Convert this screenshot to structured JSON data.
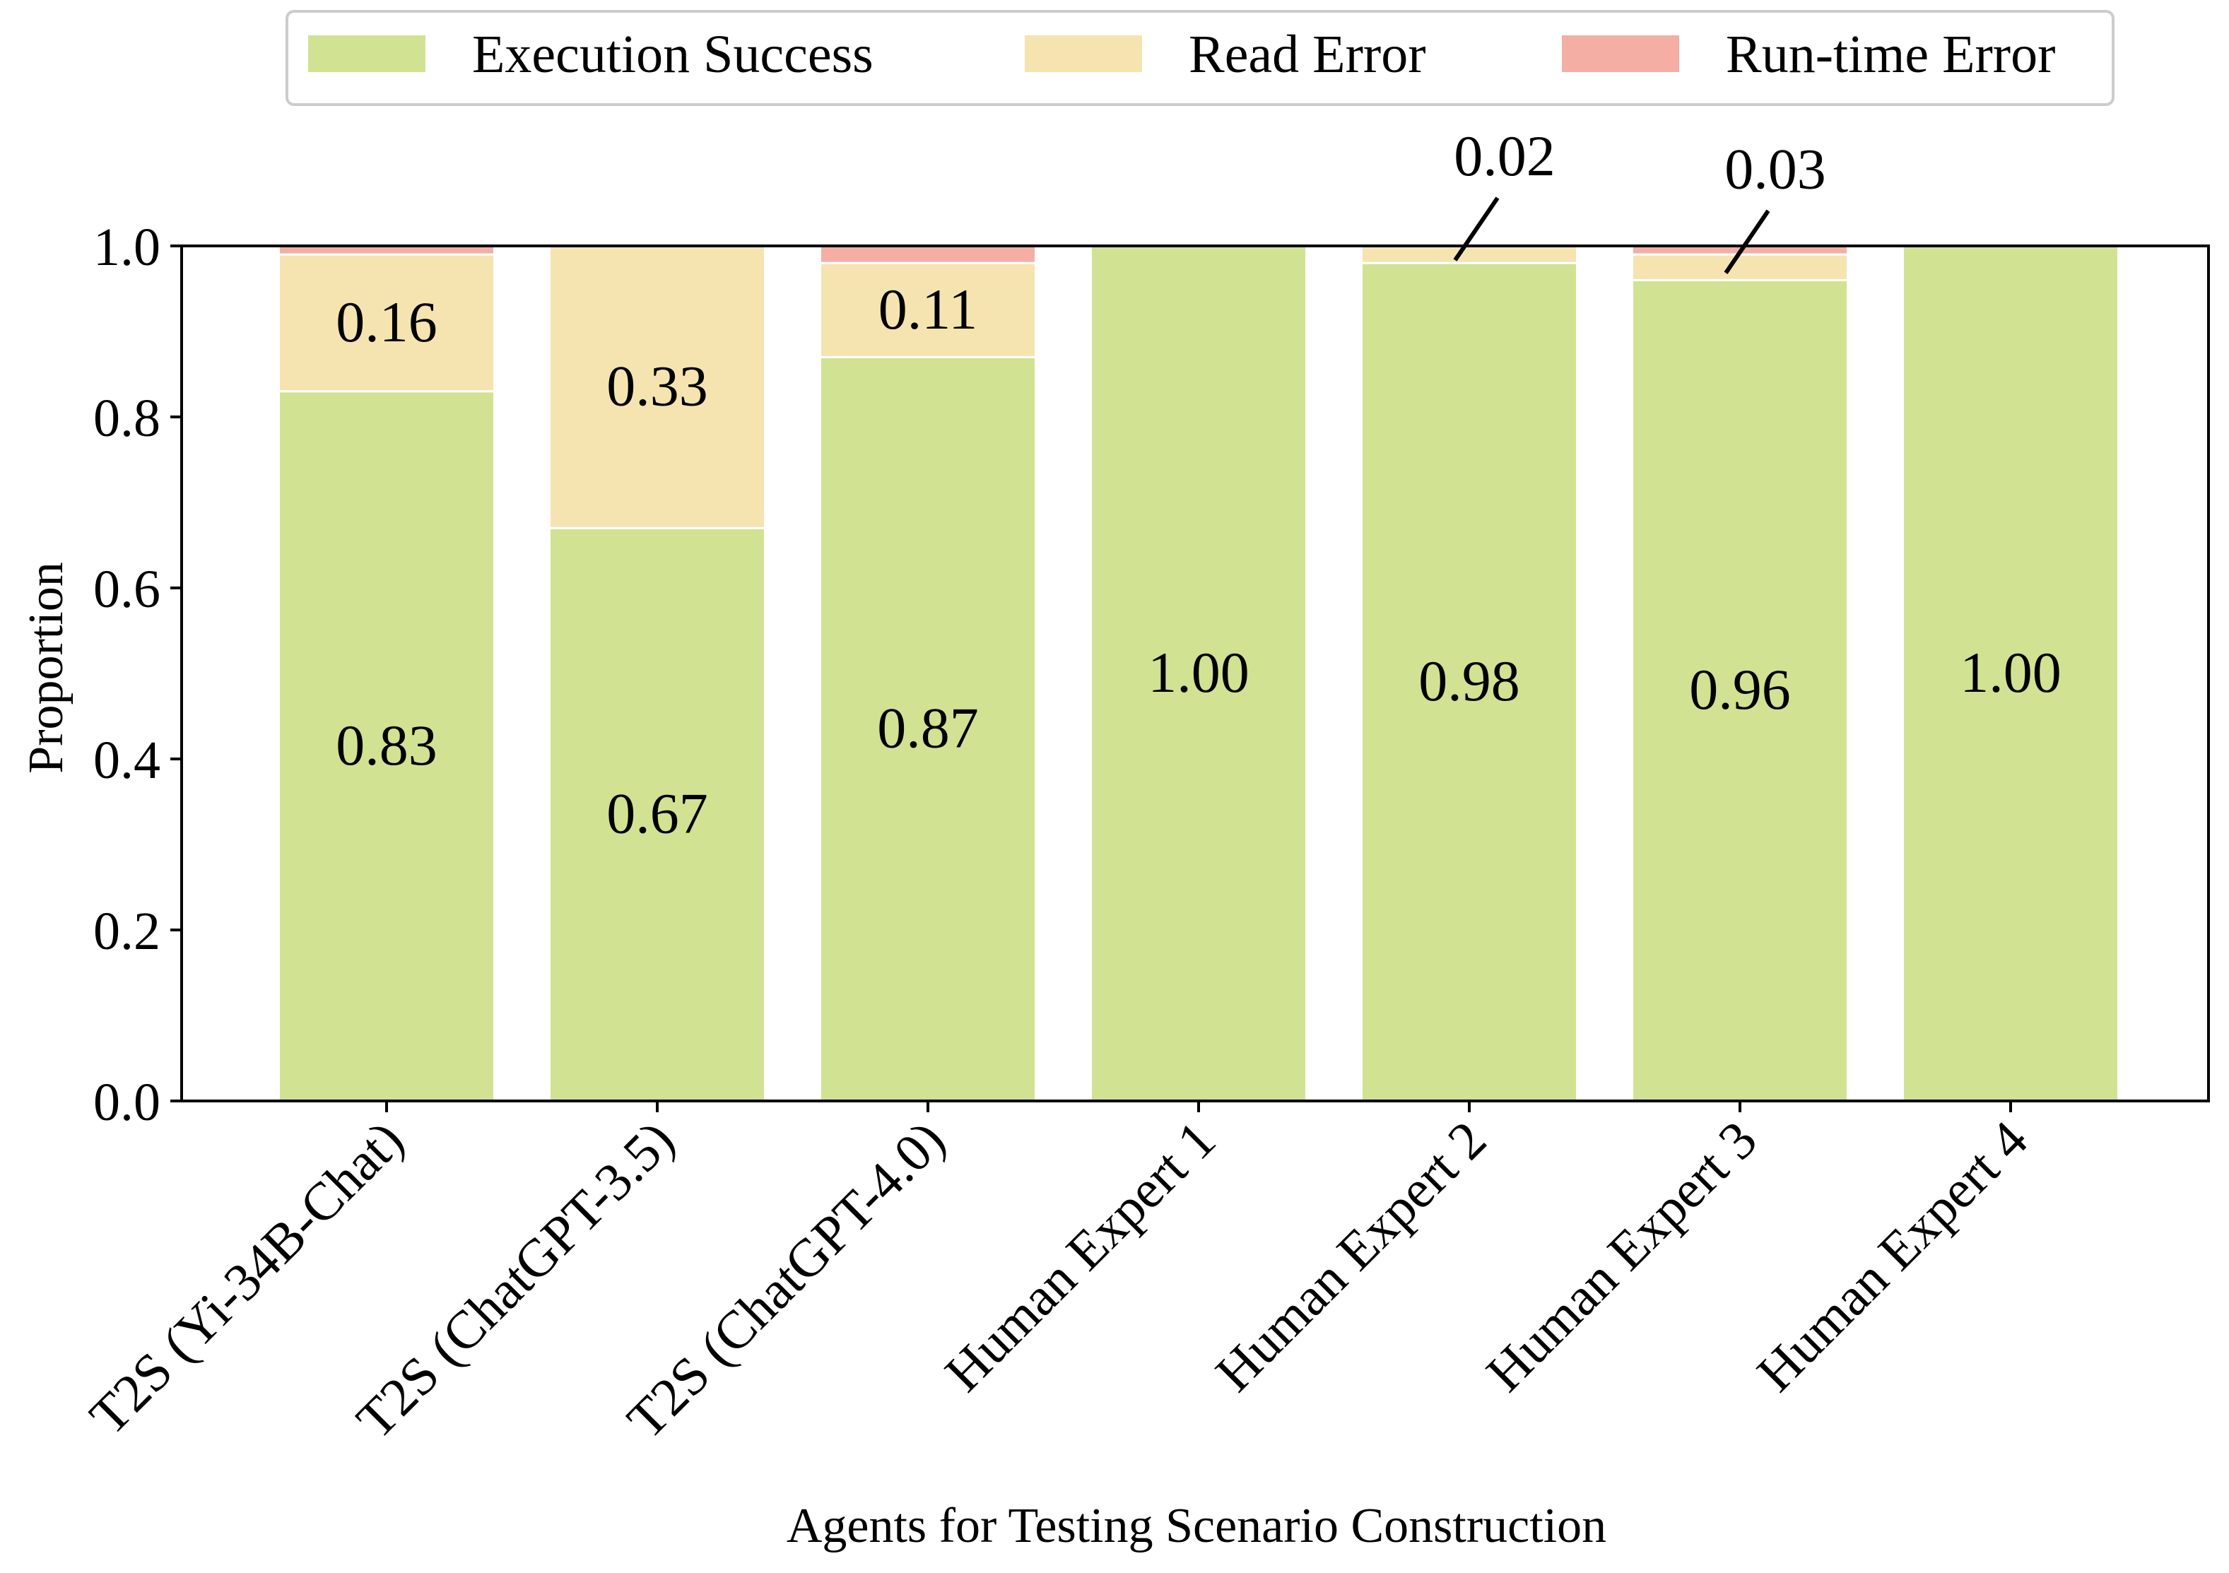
{
  "chart_data": {
    "type": "bar",
    "stacked": true,
    "title": "",
    "xlabel": "Agents for Testing Scenario Construction",
    "ylabel": "Proportion",
    "ylim": [
      0,
      1.0
    ],
    "yticks": [
      "0.0",
      "0.2",
      "0.4",
      "0.6",
      "0.8",
      "1.0"
    ],
    "grid": false,
    "legend_position": "top-center",
    "categories": [
      "T2S (Yi-34B-Chat)",
      "T2S (ChatGPT-3.5)",
      "T2S (ChatGPT-4.0)",
      "Human Expert 1",
      "Human Expert 2",
      "Human Expert 3",
      "Human Expert 4"
    ],
    "series": [
      {
        "name": "Execution Success",
        "color": "#d1e293",
        "values": [
          0.83,
          0.67,
          0.87,
          1.0,
          0.98,
          0.96,
          1.0
        ],
        "labels": [
          "0.83",
          "0.67",
          "0.87",
          "1.00",
          "0.98",
          "0.96",
          "1.00"
        ]
      },
      {
        "name": "Read Error",
        "color": "#f5e4b0",
        "values": [
          0.16,
          0.33,
          0.11,
          0.0,
          0.02,
          0.03,
          0.0
        ],
        "labels": [
          "0.16",
          "0.33",
          "0.11",
          "",
          "0.02",
          "0.03",
          ""
        ]
      },
      {
        "name": "Run-time Error",
        "color": "#f4aea4",
        "values": [
          0.01,
          0.0,
          0.02,
          0.0,
          0.0,
          0.01,
          0.0
        ],
        "labels": [
          "",
          "",
          "",
          "",
          "",
          "",
          ""
        ]
      }
    ],
    "callouts": [
      "Human Expert 2",
      "Human Expert 3"
    ]
  }
}
